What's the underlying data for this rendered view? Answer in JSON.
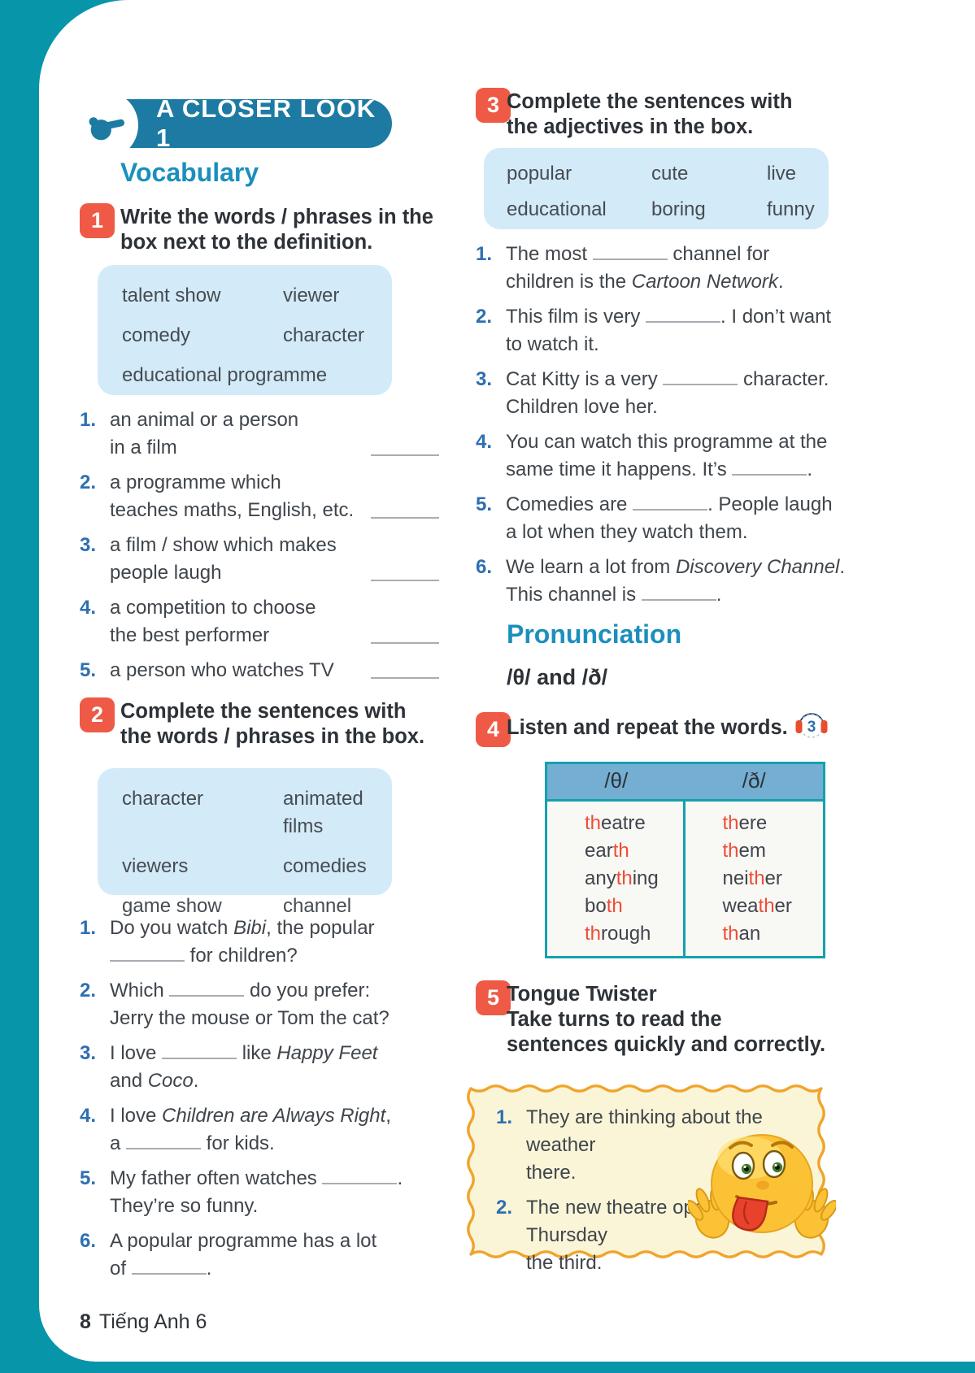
{
  "colors": {
    "frame_teal": "#0795a9",
    "banner_teal": "#1d7ba3",
    "heading_teal": "#1b8fbd",
    "badge_red": "#ee5a45",
    "box_blue": "#d3eaf8",
    "number_blue": "#2d6fb2",
    "th_red": "#ee4c35",
    "table_border": "#14a1af",
    "table_head": "#74aed2",
    "tw_bg": "#fbf5d8",
    "tw_border": "#f0a42c"
  },
  "banner": {
    "title": "A CLOSER LOOK 1"
  },
  "footer": {
    "page_number": "8",
    "book_title": "Tiếng Anh 6"
  },
  "vocabulary": {
    "heading": "Vocabulary",
    "ex1": {
      "badge": "1",
      "title_lines": [
        "Write the words / phrases in the",
        "box next to the definition."
      ],
      "box_rows": [
        [
          "talent show",
          "viewer"
        ],
        [
          "comedy",
          "character"
        ],
        [
          "educational programme"
        ]
      ],
      "items": [
        {
          "num": "1.",
          "lines": [
            [
              {
                "t": "an animal or a person"
              }
            ],
            [
              {
                "t": "in a film"
              }
            ]
          ]
        },
        {
          "num": "2.",
          "lines": [
            [
              {
                "t": "a programme which"
              }
            ],
            [
              {
                "t": "teaches maths, English, etc."
              }
            ]
          ]
        },
        {
          "num": "3.",
          "lines": [
            [
              {
                "t": "a film / show which makes"
              }
            ],
            [
              {
                "t": "people laugh"
              }
            ]
          ]
        },
        {
          "num": "4.",
          "lines": [
            [
              {
                "t": "a competition to choose"
              }
            ],
            [
              {
                "t": "the best performer"
              }
            ]
          ]
        },
        {
          "num": "5.",
          "lines": [
            [
              {
                "t": "a person who watches TV"
              }
            ]
          ]
        }
      ]
    },
    "ex2": {
      "badge": "2",
      "title_lines": [
        "Complete the sentences with",
        "the words / phrases in the box."
      ],
      "box_rows": [
        [
          "character",
          "animated films"
        ],
        [
          "viewers",
          "comedies"
        ],
        [
          "game show",
          "channel"
        ]
      ],
      "items": [
        {
          "num": "1.",
          "lines": [
            [
              {
                "t": "Do you watch "
              },
              {
                "t": "Bibi",
                "i": 1
              },
              {
                "t": ", the popular"
              }
            ],
            [
              {
                "b": 1
              },
              {
                "t": " for children?"
              }
            ]
          ]
        },
        {
          "num": "2.",
          "lines": [
            [
              {
                "t": "Which "
              },
              {
                "b": 1
              },
              {
                "t": " do you prefer:"
              }
            ],
            [
              {
                "t": "Jerry the mouse or Tom the cat?"
              }
            ]
          ]
        },
        {
          "num": "3.",
          "lines": [
            [
              {
                "t": "I love "
              },
              {
                "b": 1
              },
              {
                "t": " like "
              },
              {
                "t": "Happy Feet",
                "i": 1
              }
            ],
            [
              {
                "t": "and "
              },
              {
                "t": "Coco",
                "i": 1
              },
              {
                "t": "."
              }
            ]
          ]
        },
        {
          "num": "4.",
          "lines": [
            [
              {
                "t": "I love "
              },
              {
                "t": "Children are Always Right",
                "i": 1
              },
              {
                "t": ","
              }
            ],
            [
              {
                "t": "a "
              },
              {
                "b": 1
              },
              {
                "t": " for kids."
              }
            ]
          ]
        },
        {
          "num": "5.",
          "lines": [
            [
              {
                "t": "My father often watches "
              },
              {
                "b": 1
              },
              {
                "t": "."
              }
            ],
            [
              {
                "t": "They’re so funny."
              }
            ]
          ]
        },
        {
          "num": "6.",
          "lines": [
            [
              {
                "t": "A popular programme has a lot"
              }
            ],
            [
              {
                "t": "of "
              },
              {
                "b": 1
              },
              {
                "t": "."
              }
            ]
          ]
        }
      ]
    }
  },
  "ex3": {
    "badge": "3",
    "title_lines": [
      "Complete the sentences with",
      "the adjectives in the box."
    ],
    "box_rows": [
      [
        "popular",
        "cute",
        "live"
      ],
      [
        "educational",
        "boring",
        "funny"
      ]
    ],
    "items": [
      {
        "num": "1.",
        "lines": [
          [
            {
              "t": "The most "
            },
            {
              "b": 1
            },
            {
              "t": " channel for"
            }
          ],
          [
            {
              "t": "children is the "
            },
            {
              "t": "Cartoon Network",
              "i": 1
            },
            {
              "t": "."
            }
          ]
        ]
      },
      {
        "num": "2.",
        "lines": [
          [
            {
              "t": "This film is very "
            },
            {
              "b": 1
            },
            {
              "t": ". I don’t want"
            }
          ],
          [
            {
              "t": "to watch it."
            }
          ]
        ]
      },
      {
        "num": "3.",
        "lines": [
          [
            {
              "t": "Cat Kitty is a very "
            },
            {
              "b": 1
            },
            {
              "t": " character."
            }
          ],
          [
            {
              "t": "Children love her."
            }
          ]
        ]
      },
      {
        "num": "4.",
        "lines": [
          [
            {
              "t": "You can watch this programme at the"
            }
          ],
          [
            {
              "t": "same time it happens. It’s "
            },
            {
              "b": 1
            },
            {
              "t": "."
            }
          ]
        ]
      },
      {
        "num": "5.",
        "lines": [
          [
            {
              "t": "Comedies are "
            },
            {
              "b": 1
            },
            {
              "t": ". People laugh"
            }
          ],
          [
            {
              "t": "a lot when they watch them."
            }
          ]
        ]
      },
      {
        "num": "6.",
        "lines": [
          [
            {
              "t": "We learn a lot from "
            },
            {
              "t": "Discovery Channel",
              "i": 1
            },
            {
              "t": "."
            }
          ],
          [
            {
              "t": "This channel is "
            },
            {
              "b": 1
            },
            {
              "t": "."
            }
          ]
        ]
      }
    ]
  },
  "pronunciation": {
    "heading": "Pronunciation",
    "subtitle": "/θ/ and /ð/",
    "ex4": {
      "badge": "4",
      "title": "Listen and repeat the words.",
      "audio_track": "3",
      "table": {
        "headers": [
          "/θ/",
          "/ð/"
        ],
        "rows": [
          [
            [
              {
                "t": "th",
                "r": 1
              },
              {
                "t": "eatre"
              }
            ],
            [
              {
                "t": "th",
                "r": 1
              },
              {
                "t": "ere"
              }
            ]
          ],
          [
            [
              {
                "t": "ear"
              },
              {
                "t": "th",
                "r": 1
              }
            ],
            [
              {
                "t": "th",
                "r": 1
              },
              {
                "t": "em"
              }
            ]
          ],
          [
            [
              {
                "t": "any"
              },
              {
                "t": "th",
                "r": 1
              },
              {
                "t": "ing"
              }
            ],
            [
              {
                "t": "nei"
              },
              {
                "t": "th",
                "r": 1
              },
              {
                "t": "er"
              }
            ]
          ],
          [
            [
              {
                "t": "bo"
              },
              {
                "t": "th",
                "r": 1
              }
            ],
            [
              {
                "t": "wea"
              },
              {
                "t": "th",
                "r": 1
              },
              {
                "t": "er"
              }
            ]
          ],
          [
            [
              {
                "t": "th",
                "r": 1
              },
              {
                "t": "rough"
              }
            ],
            [
              {
                "t": "th",
                "r": 1
              },
              {
                "t": "an"
              }
            ]
          ]
        ]
      }
    },
    "ex5": {
      "badge": "5",
      "title_lines": [
        "Tongue Twister",
        "Take turns to read the",
        "sentences quickly and correctly."
      ],
      "items": [
        {
          "num": "1.",
          "lines": [
            [
              {
                "t": "They are thinking about the weather"
              }
            ],
            [
              {
                "t": "there."
              }
            ]
          ]
        },
        {
          "num": "2.",
          "lines": [
            [
              {
                "t": "The new theatre opens on Thursday"
              }
            ],
            [
              {
                "t": "the third."
              }
            ]
          ]
        }
      ]
    }
  }
}
